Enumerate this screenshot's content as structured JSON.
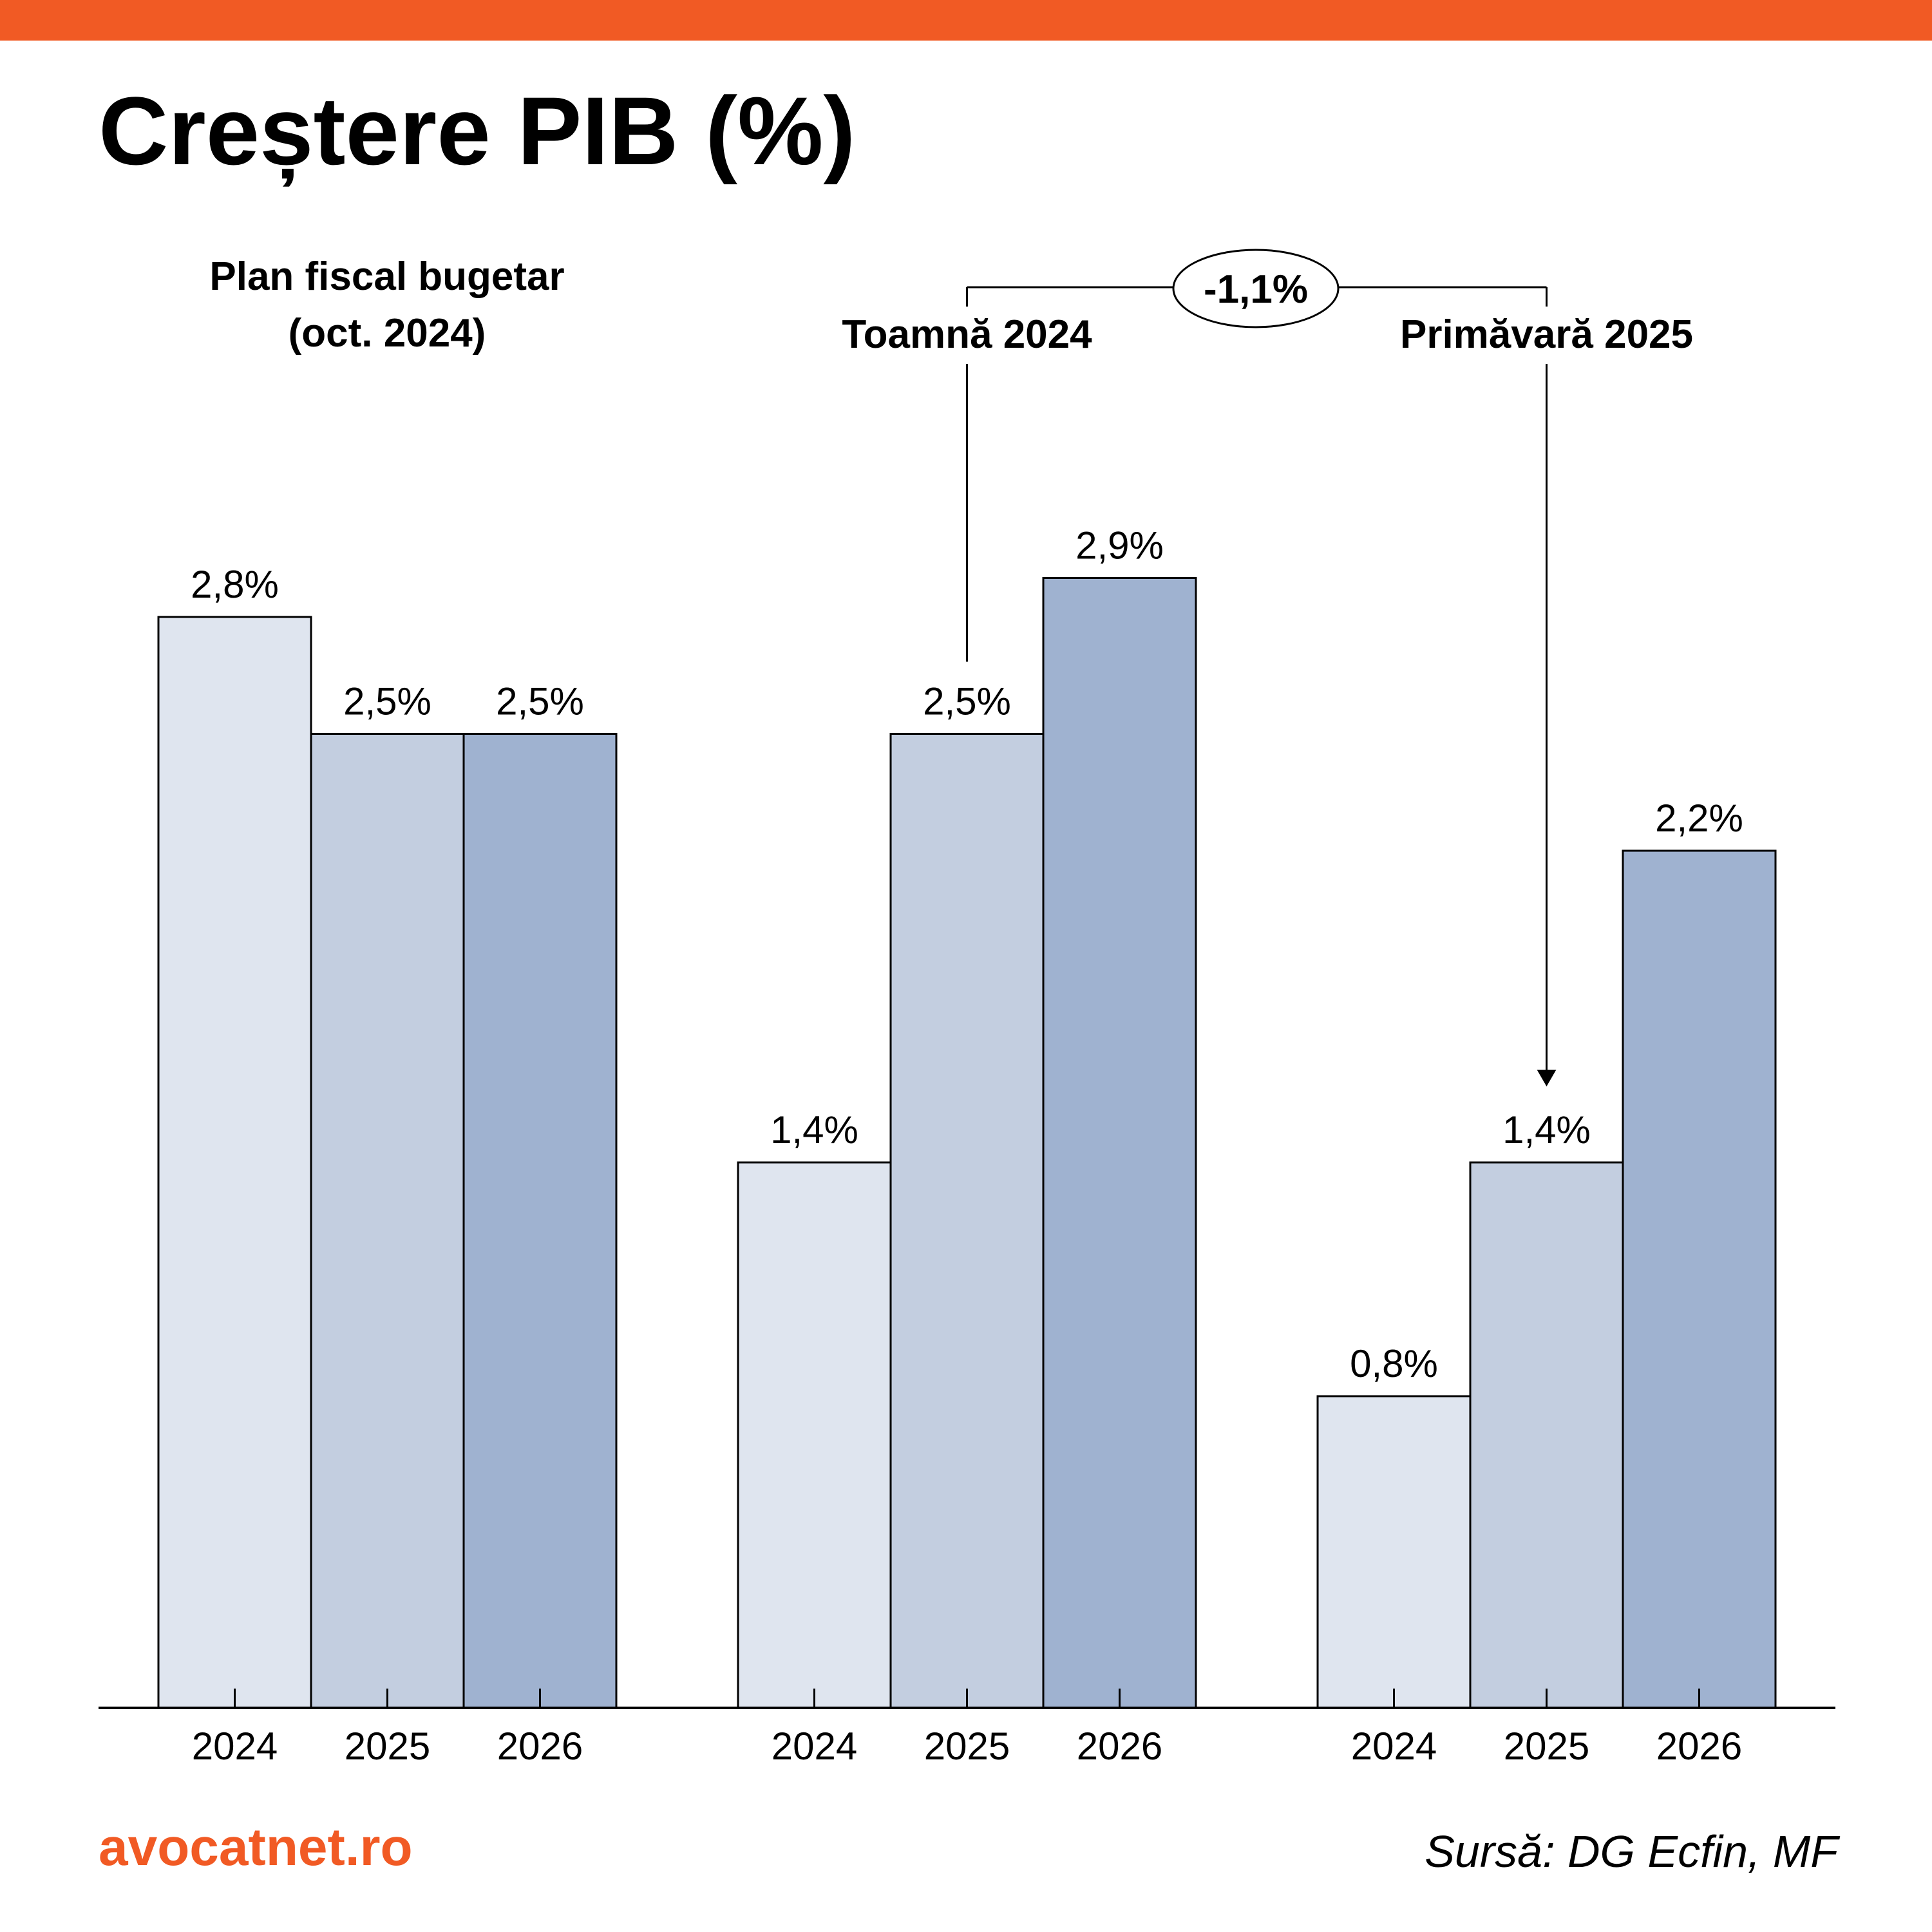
{
  "title": "Creștere PIB (%)",
  "colors": {
    "accent": "#F15A24",
    "bar_2024": "#DFE5EF",
    "bar_2025": "#C3CEE0",
    "bar_2026": "#9FB2D0",
    "outline": "#000000"
  },
  "chart_data": {
    "type": "bar",
    "ylim": [
      0,
      3.4
    ],
    "categories": [
      "2024",
      "2025",
      "2026"
    ],
    "groups": [
      {
        "label_lines": [
          "Plan fiscal bugetar",
          "(oct. 2024)"
        ],
        "values": [
          2.8,
          2.5,
          2.5
        ],
        "value_labels": [
          "2,8%",
          "2,5%",
          "2,5%"
        ]
      },
      {
        "label_lines": [
          "Toamnă 2024"
        ],
        "values": [
          1.4,
          2.5,
          2.9
        ],
        "value_labels": [
          "1,4%",
          "2,5%",
          "2,9%"
        ]
      },
      {
        "label_lines": [
          "Primăvară 2025"
        ],
        "values": [
          0.8,
          1.4,
          2.2
        ],
        "value_labels": [
          "0,8%",
          "1,4%",
          "2,2%"
        ]
      }
    ],
    "annotation": {
      "text": "-1,1%",
      "from": "Toamnă 2024 · 2025",
      "to": "Primăvară 2025 · 2025"
    },
    "grid": false,
    "legend": "none"
  },
  "footer": {
    "brand": "avocatnet.ro",
    "source": "Sursă: DG Ecfin, MF"
  }
}
